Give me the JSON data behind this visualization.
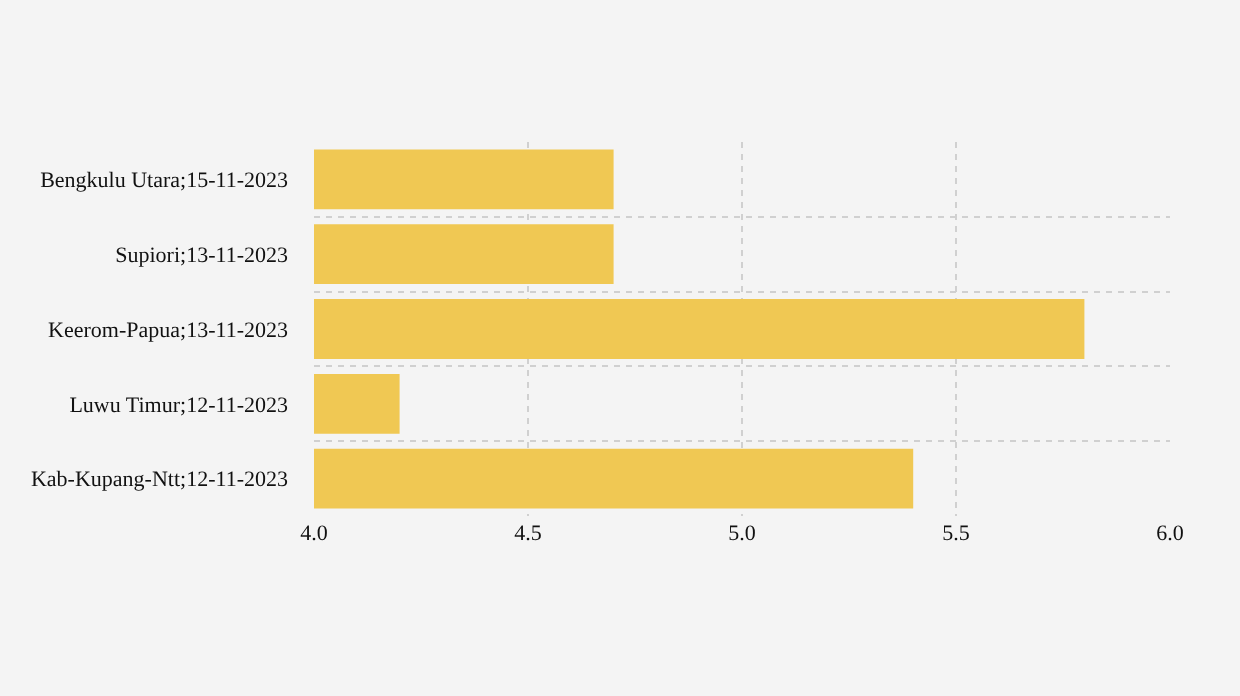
{
  "chart_data": {
    "type": "bar",
    "orientation": "horizontal",
    "categories": [
      "Bengkulu Utara;15-11-2023",
      "Supiori;13-11-2023",
      "Keerom-Papua;13-11-2023",
      "Luwu Timur;12-11-2023",
      "Kab-Kupang-Ntt;12-11-2023"
    ],
    "values": [
      4.7,
      4.7,
      5.8,
      4.2,
      5.4
    ],
    "color": "#f0c853",
    "xlim": [
      4.0,
      6.0
    ],
    "xticks": [
      {
        "value": 4.0,
        "label": "4.0"
      },
      {
        "value": 4.5,
        "label": "4.5"
      },
      {
        "value": 5.0,
        "label": "5.0"
      },
      {
        "value": 5.5,
        "label": "5.5"
      },
      {
        "value": 6.0,
        "label": "6.0"
      }
    ],
    "grid": true
  }
}
